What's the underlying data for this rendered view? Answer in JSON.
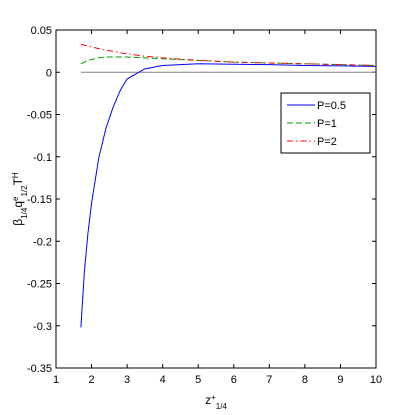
{
  "chart_data": {
    "type": "line",
    "xlabel": [
      "z",
      "+",
      "1/4"
    ],
    "ylabel": [
      "β",
      "1/4",
      "q",
      "e",
      "1/2",
      "T",
      "H"
    ],
    "x": [
      1.7,
      1.8,
      1.9,
      2,
      2.2,
      2.4,
      2.6,
      2.8,
      3,
      3.5,
      4,
      5,
      6,
      7,
      8,
      9,
      10
    ],
    "series": [
      {
        "name": "P=0.5",
        "color": "#0000ff",
        "linestyle": "-",
        "values": [
          -0.302,
          -0.235,
          -0.19,
          -0.155,
          -0.102,
          -0.067,
          -0.042,
          -0.022,
          -0.008,
          0.004,
          0.008,
          0.01,
          0.0095,
          0.009,
          0.008,
          0.0075,
          0.007
        ]
      },
      {
        "name": "P=1",
        "color": "#00a000",
        "linestyle": "--",
        "values": [
          0.01,
          0.012,
          0.014,
          0.015,
          0.017,
          0.018,
          0.018,
          0.018,
          0.018,
          0.017,
          0.016,
          0.014,
          0.012,
          0.011,
          0.01,
          0.009,
          0.008
        ]
      },
      {
        "name": "P=2",
        "color": "#ff0000",
        "linestyle": "-.",
        "values": [
          0.033,
          0.032,
          0.031,
          0.03,
          0.028,
          0.026,
          0.025,
          0.023,
          0.022,
          0.019,
          0.017,
          0.014,
          0.012,
          0.011,
          0.01,
          0.009,
          0.008
        ]
      }
    ],
    "hline": {
      "value": 0,
      "color": "#808080"
    },
    "xlim": [
      1,
      10
    ],
    "xticks": [
      1,
      2,
      3,
      4,
      5,
      6,
      7,
      8,
      9,
      10
    ],
    "ylim": [
      -0.35,
      0.05
    ],
    "yticks": [
      0.05,
      0,
      -0.05,
      -0.1,
      -0.15,
      -0.2,
      -0.25,
      -0.3,
      -0.35
    ],
    "legend": "upper right"
  }
}
